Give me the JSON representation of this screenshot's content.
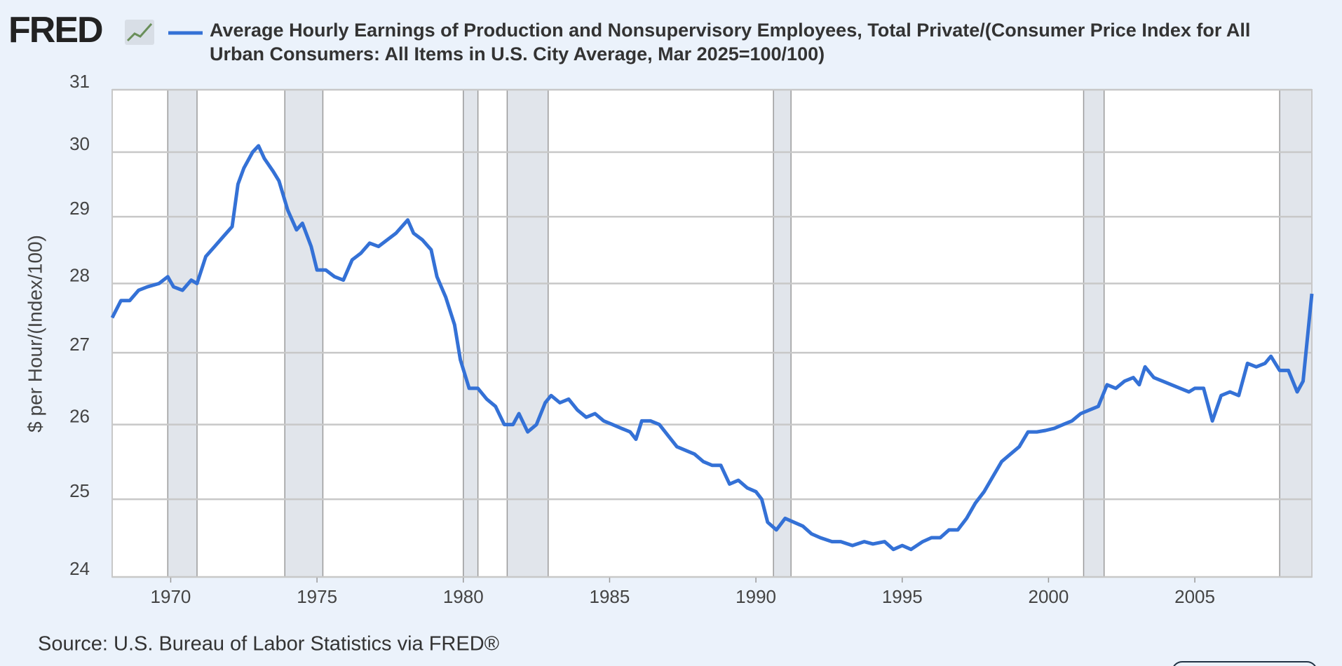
{
  "brand": "FRED",
  "chart_data": {
    "type": "line",
    "title_lines": [
      "Average Hourly Earnings of Production and Nonsupervisory Employees, Total Private/(Consumer Price Index for All",
      "Urban Consumers: All Items in U.S. City Average, Mar 2025=100/100)"
    ],
    "y_label": "$ per Hour/(Index/100)",
    "source": "Source: U.S. Bureau of Labor Statistics via FRED®",
    "log_scale": true,
    "grid": true,
    "xlim": [
      1968,
      2009
    ],
    "xticks": [
      1970,
      1975,
      1980,
      1985,
      1990,
      1995,
      2000,
      2005
    ],
    "ylim": [
      24,
      31
    ],
    "yticks": [
      24,
      25,
      26,
      27,
      28,
      29,
      30,
      31
    ],
    "recessions": [
      [
        1969.9,
        1970.9
      ],
      [
        1973.9,
        1975.2
      ],
      [
        1980.0,
        1980.5
      ],
      [
        1981.5,
        1982.9
      ],
      [
        1990.6,
        1991.2
      ],
      [
        2001.2,
        2001.9
      ],
      [
        2007.9,
        2009.0
      ]
    ],
    "x": [
      1968.0,
      1968.3,
      1968.6,
      1968.9,
      1969.2,
      1969.6,
      1969.9,
      1970.1,
      1970.4,
      1970.7,
      1970.9,
      1971.2,
      1971.5,
      1971.8,
      1972.1,
      1972.3,
      1972.5,
      1972.8,
      1973.0,
      1973.2,
      1973.5,
      1973.7,
      1974.0,
      1974.3,
      1974.5,
      1974.8,
      1975.0,
      1975.3,
      1975.6,
      1975.9,
      1976.2,
      1976.5,
      1976.8,
      1977.1,
      1977.4,
      1977.7,
      1978.1,
      1978.3,
      1978.6,
      1978.9,
      1979.1,
      1979.4,
      1979.7,
      1979.9,
      1980.2,
      1980.5,
      1980.8,
      1981.1,
      1981.4,
      1981.7,
      1981.9,
      1982.2,
      1982.5,
      1982.8,
      1983.0,
      1983.3,
      1983.6,
      1983.9,
      1984.2,
      1984.5,
      1984.8,
      1985.1,
      1985.4,
      1985.7,
      1985.9,
      1986.1,
      1986.4,
      1986.7,
      1987.0,
      1987.3,
      1987.6,
      1987.9,
      1988.2,
      1988.5,
      1988.8,
      1989.1,
      1989.4,
      1989.7,
      1990.0,
      1990.2,
      1990.4,
      1990.7,
      1991.0,
      1991.3,
      1991.6,
      1991.9,
      1992.2,
      1992.6,
      1992.9,
      1993.3,
      1993.7,
      1994.0,
      1994.4,
      1994.7,
      1995.0,
      1995.3,
      1995.7,
      1996.0,
      1996.3,
      1996.6,
      1996.9,
      1997.2,
      1997.5,
      1997.8,
      1998.1,
      1998.4,
      1998.7,
      1999.0,
      1999.3,
      1999.6,
      1999.9,
      2000.2,
      2000.5,
      2000.8,
      2001.1,
      2001.4,
      2001.7,
      2002.0,
      2002.3,
      2002.6,
      2002.9,
      2003.1,
      2003.3,
      2003.6,
      2003.9,
      2004.2,
      2004.5,
      2004.8,
      2005.0,
      2005.3,
      2005.6,
      2005.9,
      2006.2,
      2006.5,
      2006.8,
      2007.1,
      2007.4,
      2007.6,
      2007.9,
      2008.2,
      2008.5,
      2008.7,
      2009.0
    ],
    "series": [
      {
        "name": "Average Hourly Earnings of Production and Nonsupervisory Employees, Total Private/(Consumer Price Index for All Urban Consumers: All Items in U.S. City Average, Mar 2025=100/100)",
        "color": "#3471d6",
        "values": [
          27.5,
          27.75,
          27.75,
          27.9,
          27.95,
          28.0,
          28.1,
          27.95,
          27.9,
          28.05,
          28.0,
          28.4,
          28.55,
          28.7,
          28.85,
          29.5,
          29.75,
          30.0,
          30.1,
          29.9,
          29.7,
          29.55,
          29.1,
          28.8,
          28.9,
          28.55,
          28.2,
          28.2,
          28.1,
          28.05,
          28.35,
          28.45,
          28.6,
          28.55,
          28.65,
          28.75,
          28.95,
          28.75,
          28.65,
          28.5,
          28.1,
          27.8,
          27.4,
          26.9,
          26.5,
          26.5,
          26.35,
          26.25,
          26.0,
          26.0,
          26.15,
          25.9,
          26.0,
          26.3,
          26.4,
          26.3,
          26.35,
          26.2,
          26.1,
          26.15,
          26.05,
          26.0,
          25.95,
          25.9,
          25.8,
          26.05,
          26.05,
          26.0,
          25.85,
          25.7,
          25.65,
          25.6,
          25.5,
          25.45,
          25.45,
          25.2,
          25.25,
          25.15,
          25.1,
          25.0,
          24.7,
          24.6,
          24.75,
          24.7,
          24.65,
          24.55,
          24.5,
          24.45,
          24.45,
          24.4,
          24.45,
          24.42,
          24.45,
          24.35,
          24.4,
          24.35,
          24.45,
          24.5,
          24.5,
          24.6,
          24.6,
          24.75,
          24.95,
          25.1,
          25.3,
          25.5,
          25.6,
          25.7,
          25.9,
          25.9,
          25.92,
          25.95,
          26.0,
          26.05,
          26.15,
          26.2,
          26.25,
          26.55,
          26.5,
          26.6,
          26.65,
          26.55,
          26.8,
          26.65,
          26.6,
          26.55,
          26.5,
          26.45,
          26.5,
          26.5,
          26.05,
          26.4,
          26.45,
          26.4,
          26.85,
          26.8,
          26.85,
          26.95,
          26.75,
          26.75,
          26.45,
          26.6,
          27.85
        ]
      }
    ]
  }
}
